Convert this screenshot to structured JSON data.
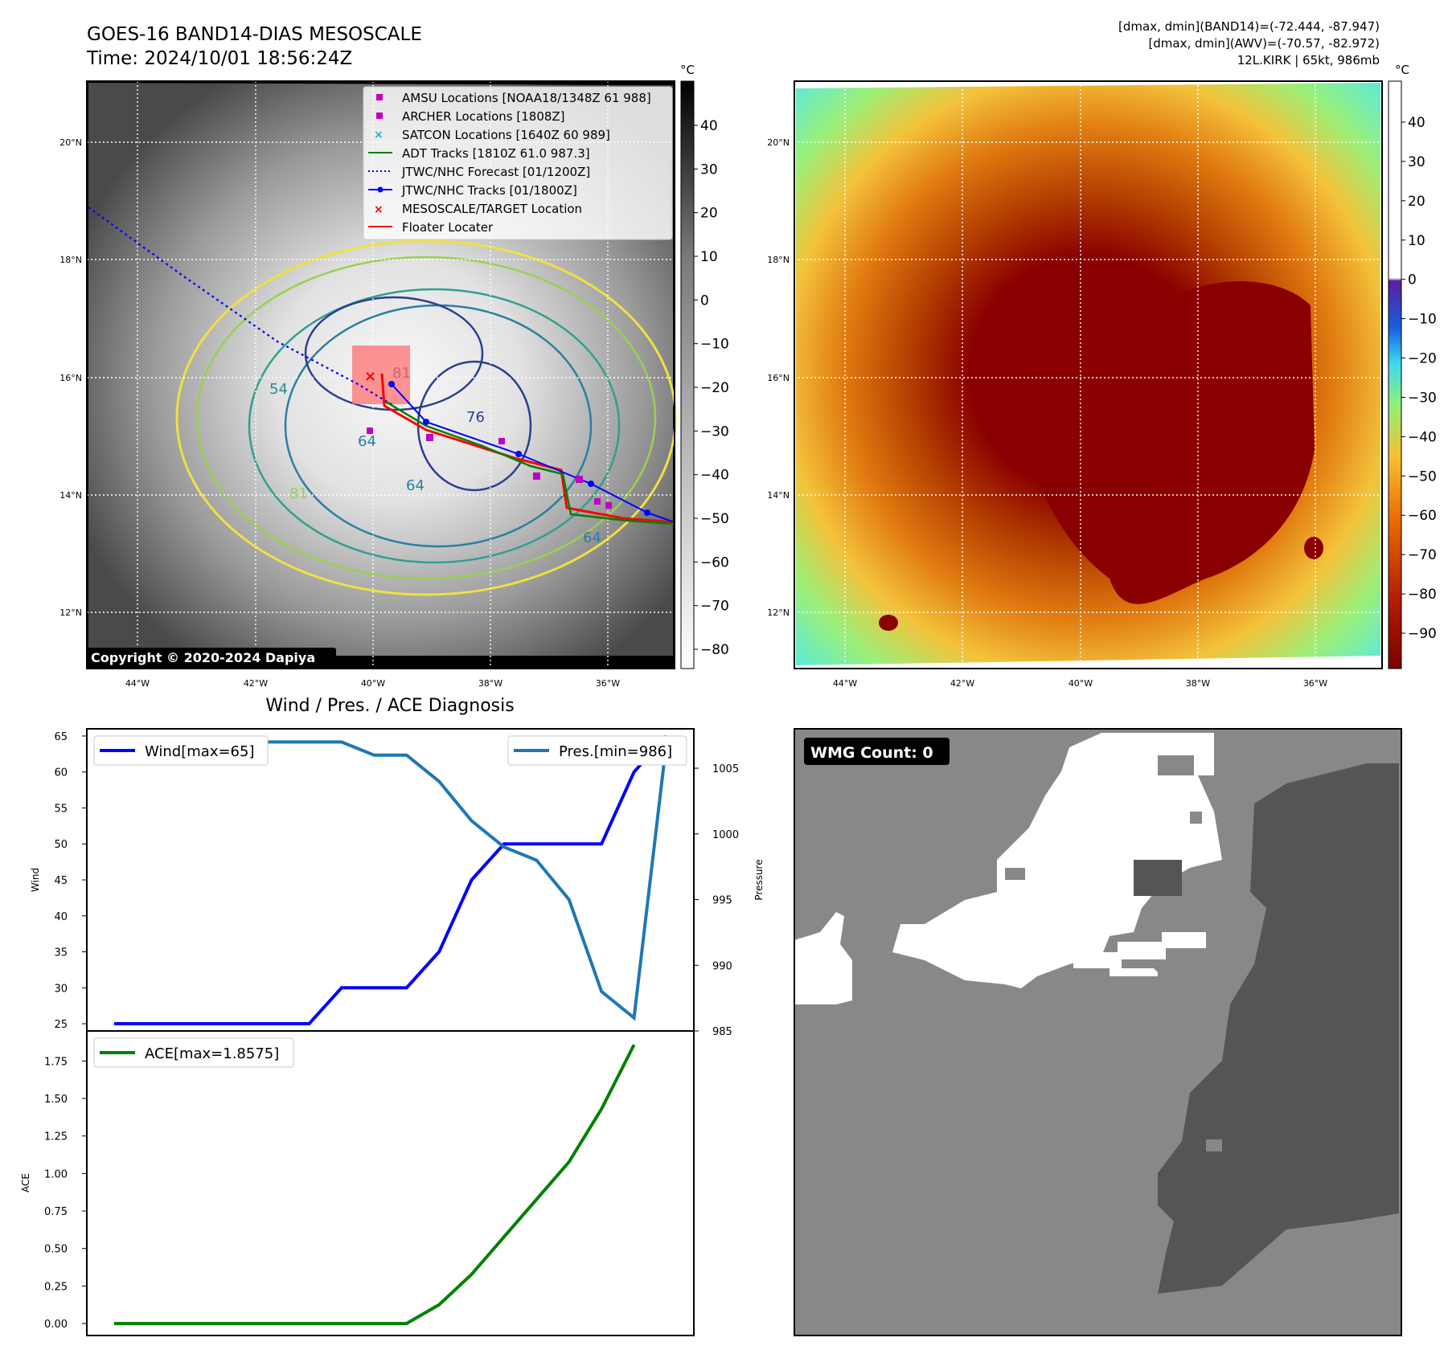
{
  "header": {
    "title_line1": "GOES-16 BAND14-DIAS MESOSCALE",
    "title_line2": "Time: 2024/10/01 18:56:24Z",
    "stats_line1": "[dmax, dmin](BAND14)=(-72.444, -87.947)",
    "stats_line2": "[dmax, dmin](AWV)=(-70.57, -82.972)",
    "stats_line3": "12L.KIRK | 65kt, 986mb"
  },
  "map": {
    "lat_labels": [
      "20°N",
      "18°N",
      "16°N",
      "14°N",
      "12°N"
    ],
    "lon_labels": [
      "44°W",
      "42°W",
      "40°W",
      "38°W",
      "36°W"
    ],
    "copyright": "Copyright © 2020-2024 Dapiya",
    "contour_labels": [
      "54",
      "64",
      "76",
      "81",
      "64",
      "81",
      "64"
    ],
    "legend": [
      {
        "label": "AMSU Locations [NOAA18/1348Z 61 988]",
        "marker": "square",
        "color": "#c000c0"
      },
      {
        "label": "ARCHER Locations [1808Z]",
        "marker": "square",
        "color": "#c000c0"
      },
      {
        "label": "SATCON Locations [1640Z 60 989]",
        "marker": "x",
        "color": "#00c0c0"
      },
      {
        "label": "ADT Tracks [1810Z 61.0 987.3]",
        "marker": "line",
        "color": "#008000"
      },
      {
        "label": "JTWC/NHC Forecast [01/1200Z]",
        "marker": "dotted",
        "color": "#0000ff"
      },
      {
        "label": "JTWC/NHC Tracks [01/1800Z]",
        "marker": "line-dot",
        "color": "#0000ff"
      },
      {
        "label": "MESOSCALE/TARGET Location",
        "marker": "x",
        "color": "#ff0000"
      },
      {
        "label": "Floater Locater",
        "marker": "line",
        "color": "#ff0000"
      }
    ]
  },
  "colorbar_gray": {
    "unit": "°C",
    "ticks": [
      "40",
      "30",
      "20",
      "10",
      "0",
      "−10",
      "−20",
      "−30",
      "−40",
      "−50",
      "−60",
      "−70",
      "−80"
    ]
  },
  "colorbar_color": {
    "unit": "°C",
    "ticks": [
      "40",
      "30",
      "20",
      "10",
      "0",
      "−10",
      "−20",
      "−30",
      "−40",
      "−50",
      "−60",
      "−70",
      "−80",
      "−90"
    ]
  },
  "wmg": {
    "label": "WMG Count: 0"
  },
  "chart_data": [
    {
      "type": "line",
      "title": "Wind / Pres. / ACE Diagnosis",
      "ylabel": "Wind",
      "ylabel2": "Pressure",
      "ylim": [
        24,
        66
      ],
      "ylim2": [
        985,
        1008
      ],
      "yticks": [
        25,
        30,
        35,
        40,
        45,
        50,
        55,
        60,
        65
      ],
      "yticks2": [
        985,
        990,
        995,
        1000,
        1005
      ],
      "series": [
        {
          "name": "Wind[max=65]",
          "color": "#0000ff",
          "axis": "left",
          "values": [
            25,
            25,
            25,
            25,
            25,
            25,
            25,
            30,
            30,
            30,
            35,
            45,
            50,
            50,
            50,
            50,
            60,
            65
          ]
        },
        {
          "name": "Pres.[min=986]",
          "color": "#1f77b4",
          "axis": "right",
          "values": [
            1007,
            1007,
            1007,
            1007,
            1007,
            1007,
            1007,
            1007,
            1006,
            1006,
            1004,
            1001,
            999,
            998,
            995,
            988,
            986,
            1007
          ]
        }
      ]
    },
    {
      "type": "line",
      "ylabel": "ACE",
      "ylim": [
        -0.08,
        1.95
      ],
      "yticks": [
        "0.00",
        "0.25",
        "0.50",
        "0.75",
        "1.00",
        "1.25",
        "1.50",
        "1.75"
      ],
      "series": [
        {
          "name": "ACE[max=1.8575]",
          "color": "#008000",
          "values": [
            0,
            0,
            0,
            0,
            0,
            0,
            0,
            0,
            0,
            0,
            0.125,
            0.3275,
            0.5775,
            0.8275,
            1.0775,
            1.43,
            1.8575,
            1.8575
          ]
        }
      ]
    }
  ]
}
